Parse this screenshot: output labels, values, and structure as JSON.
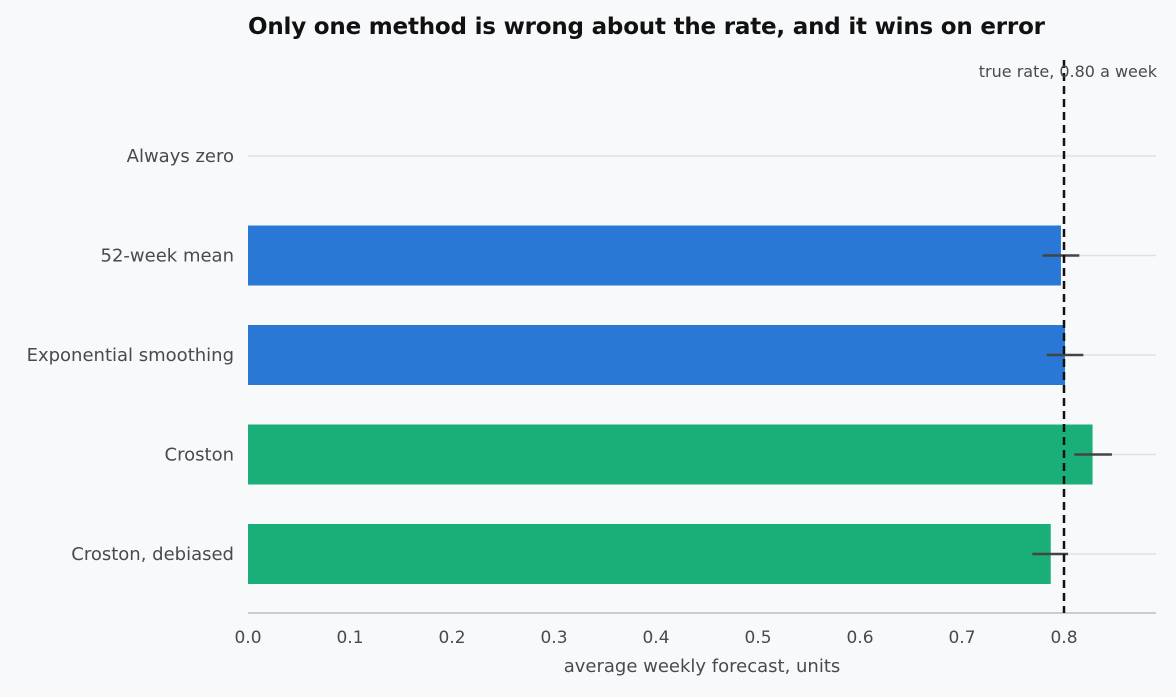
{
  "chart_data": {
    "type": "bar",
    "orientation": "horizontal",
    "title": "Only one method is wrong about the rate, and it wins on error",
    "xlabel": "average weekly forecast, units",
    "ylabel": "",
    "xlim": [
      0,
      0.88
    ],
    "xticks": [
      "0.0",
      "0.1",
      "0.2",
      "0.3",
      "0.4",
      "0.5",
      "0.6",
      "0.7",
      "0.8"
    ],
    "categories": [
      "Always zero",
      "52-week mean",
      "Exponential smoothing",
      "Croston",
      "Croston, debiased"
    ],
    "values": [
      0.0,
      0.797,
      0.801,
      0.828,
      0.787
    ],
    "error_low": [
      0.0,
      0.779,
      0.783,
      0.81,
      0.769
    ],
    "error_high": [
      0.0,
      0.815,
      0.819,
      0.847,
      0.804
    ],
    "bar_colors": [
      "#2a78d6",
      "#2a78d6",
      "#2a78d6",
      "#1aaf78",
      "#1aaf78"
    ],
    "reference_line": {
      "value": 0.8,
      "label": "true rate, 0.80 a week",
      "color": "#111111",
      "style": "dashed"
    },
    "grid": "horizontal per category",
    "legend": "none",
    "colors": {
      "background": "#f8f9fb",
      "grid": "#dfe3df",
      "axis": "#bdbdbd",
      "errorbar": "#444444",
      "text": "#4a4a4a"
    }
  }
}
